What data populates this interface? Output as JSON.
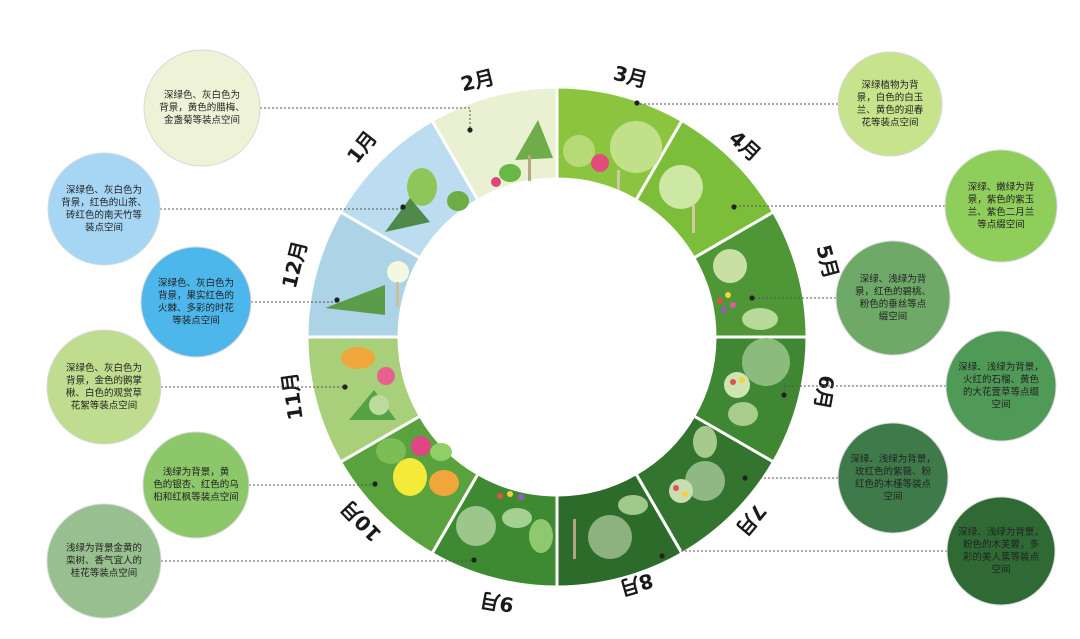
{
  "months": [
    {
      "id": "jan",
      "label": "1月",
      "color": "#bcdcef"
    },
    {
      "id": "feb",
      "label": "2月",
      "color": "#eaf0d2"
    },
    {
      "id": "mar",
      "label": "3月",
      "color": "#8bc540"
    },
    {
      "id": "apr",
      "label": "4月",
      "color": "#7cbd3a"
    },
    {
      "id": "may",
      "label": "5月",
      "color": "#4f9636"
    },
    {
      "id": "jun",
      "label": "6月",
      "color": "#3f8733"
    },
    {
      "id": "jul",
      "label": "7月",
      "color": "#33752e"
    },
    {
      "id": "aug",
      "label": "8月",
      "color": "#2d6b2b"
    },
    {
      "id": "sep",
      "label": "9月",
      "color": "#3d8a32"
    },
    {
      "id": "oct",
      "label": "10月",
      "color": "#5aa23e"
    },
    {
      "id": "nov",
      "label": "11月",
      "color": "#a8cf79"
    },
    {
      "id": "dec",
      "label": "12月",
      "color": "#acd3e6"
    }
  ],
  "notes": [
    {
      "id": "feb",
      "color": "#eef3d8",
      "lines": [
        "深绿色、灰白色为",
        "背景，黄色的腊梅、",
        "金盏菊等装点空间"
      ]
    },
    {
      "id": "jan",
      "color": "#a6d6f3",
      "lines": [
        "深绿色、灰白色为",
        "背景，红色的山茶、",
        "砖红色的南天竹等",
        "装点空间"
      ]
    },
    {
      "id": "dec",
      "color": "#4db6ea",
      "lines": [
        "深绿色、灰白色为",
        "背景，果实红色的",
        "火棘、多彩的时花",
        "等装点空间"
      ]
    },
    {
      "id": "nov",
      "color": "#c0dc8e",
      "lines": [
        "深绿色、灰白色为",
        "背景，金色的鹅掌",
        "楸、白色的观赏草",
        "花絮等装点空间"
      ]
    },
    {
      "id": "oct",
      "color": "#8cc76a",
      "lines": [
        "浅绿为背景，黄",
        "色的银杏、红色的乌",
        "桕和红枫等装点空间"
      ]
    },
    {
      "id": "sep",
      "color": "#98bf8f",
      "lines": [
        "浅绿为背景金黄的",
        "栾树、香气宜人的",
        "桂花等装点空间"
      ]
    },
    {
      "id": "mar",
      "color": "#c7e38b",
      "lines": [
        "深绿植物为背",
        "景，白色的白玉",
        "兰、黄色的迎春",
        "花等装点空间"
      ]
    },
    {
      "id": "apr",
      "color": "#8fce5b",
      "lines": [
        "深绿、嫩绿为背",
        "景，紫色的紫玉",
        "兰、紫色二月兰",
        "等点缀空间"
      ]
    },
    {
      "id": "may",
      "color": "#6ea968",
      "lines": [
        "深绿、浅绿为背",
        "景，红色的碧桃、",
        "粉色的垂丝等点",
        "缀空间"
      ]
    },
    {
      "id": "jun",
      "color": "#4f9a56",
      "lines": [
        "深绿、浅绿为背景，",
        "火红的石榴、黄色",
        "的大花萱草等点缀",
        "空间"
      ]
    },
    {
      "id": "jul",
      "color": "#3f7b4a",
      "lines": [
        "深绿、浅绿为背景，",
        "玫红色的紫薇、粉",
        "红色的木槿等装点",
        "空间"
      ]
    },
    {
      "id": "aug",
      "color": "#2f6a34",
      "lines": [
        "深绿、浅绿为背景，",
        "粉色的木芙蓉，多",
        "彩的美人蕉等装点",
        "空间"
      ]
    }
  ]
}
